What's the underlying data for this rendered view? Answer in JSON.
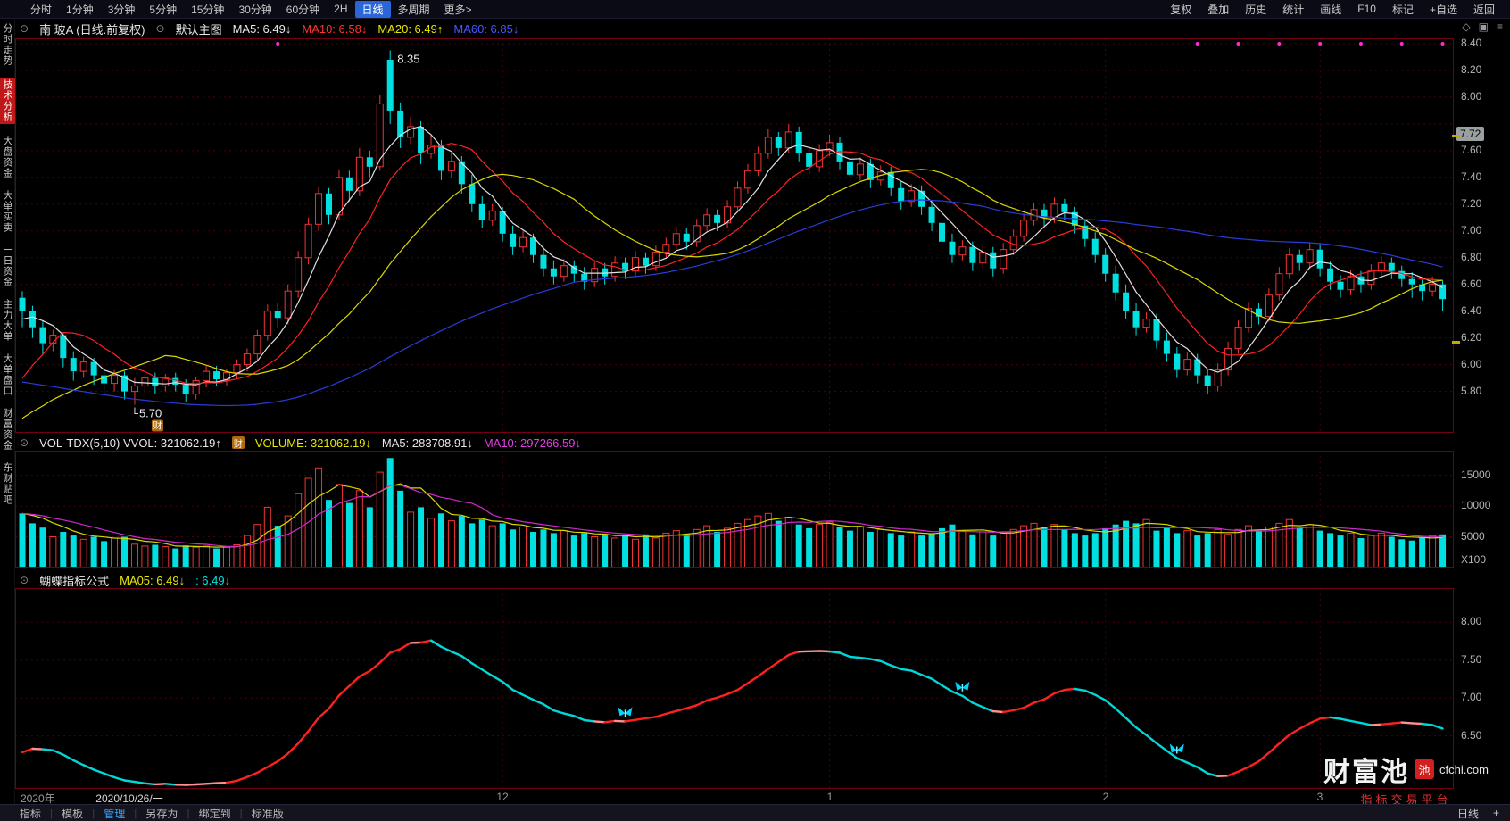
{
  "app": {
    "header_icons": [
      "◇",
      "▣",
      "≡"
    ]
  },
  "top_toolbar": {
    "periods": [
      "分时",
      "1分钟",
      "3分钟",
      "5分钟",
      "15分钟",
      "30分钟",
      "60分钟",
      "2H",
      "日线",
      "多周期",
      "更多>"
    ],
    "active_period": "日线",
    "right_buttons": [
      "复权",
      "叠加",
      "历史",
      "统计",
      "画线",
      "F10",
      "标记",
      "+自选",
      "返回"
    ]
  },
  "sidebar": {
    "items": [
      "分时走势",
      "技术分析",
      "大盘资金",
      "大单买卖",
      "一日资金",
      "主力大单",
      "大单盘口",
      "财富资金",
      "东财贴吧"
    ],
    "active": "技术分析"
  },
  "main_panel": {
    "collapse_icon": "⊙",
    "title": "南 玻A (日线.前复权)",
    "overlay_label": "默认主图",
    "ma_labels": [
      {
        "text": "MA5: 6.49↓",
        "color": "#e8e8e8"
      },
      {
        "text": "MA10: 6.58↓",
        "color": "#ff3434"
      },
      {
        "text": "MA20: 6.49↑",
        "color": "#e8e800"
      },
      {
        "text": "MA60: 6.85↓",
        "color": "#4858ff"
      }
    ],
    "peak_label": "8.35",
    "low_label": "5.70",
    "badge": "财",
    "price_marker": "7.72",
    "axis_labels": [
      "8.40",
      "8.20",
      "8.00",
      "7.60",
      "7.40",
      "7.20",
      "7.00",
      "6.80",
      "6.60",
      "6.40",
      "6.20",
      "6.00",
      "5.80"
    ]
  },
  "volume_panel": {
    "labels": [
      {
        "text": "VOL-TDX(5,10) VVOL: 321062.19↑",
        "color": "#e8e8e8"
      },
      {
        "text": "VOLUME: 321062.19↓",
        "color": "#e8e800"
      },
      {
        "text": "MA5: 283708.91↓",
        "color": "#e8e8e8"
      },
      {
        "text": "MA10: 297266.59↓",
        "color": "#e040e0"
      }
    ],
    "badge": "财",
    "axis_labels": [
      "15000",
      "10000",
      "5000"
    ],
    "unit_label": "X100"
  },
  "butterfly_panel": {
    "title": "蝴蝶指标公式",
    "labels": [
      {
        "text": "MA05: 6.49↓",
        "color": "#e8e800"
      },
      {
        "text": ": 6.49↓",
        "color": "#00e4e4"
      }
    ],
    "axis_labels": [
      "8.00",
      "7.50",
      "7.00",
      "6.50"
    ]
  },
  "date_axis": {
    "ticks": [
      {
        "label": "2020年",
        "i": 1
      },
      {
        "label": "2020/10/26/一",
        "i": 11,
        "bright": true
      },
      {
        "label": "12",
        "i": 47
      },
      {
        "label": "1",
        "i": 79
      },
      {
        "label": "2",
        "i": 106
      },
      {
        "label": "3",
        "i": 127
      }
    ]
  },
  "bottom_toolbar": {
    "items": [
      "指标",
      "模板",
      "管理",
      "另存为",
      "绑定到",
      "标准版"
    ],
    "active": "管理",
    "right_label": "日线",
    "plus": "+"
  },
  "watermark": {
    "brand": "财富池",
    "seal": "池",
    "domain": "cfchi.com",
    "tagline": "指标交易平台"
  },
  "chart_data": {
    "type": "candlestick",
    "symbol": "南玻A",
    "period": "日线",
    "price_axis_range": [
      5.49,
      8.44
    ],
    "volume_axis_max": 19000,
    "butterfly_axis_range": [
      5.8,
      8.45
    ],
    "high_annotation": {
      "value": 8.35,
      "index": 36
    },
    "low_annotation": {
      "value": 5.7,
      "index": 11
    },
    "current_price_marker": 7.72,
    "right_ticks": [
      7.72,
      6.18
    ],
    "vgrid_indices": [
      47,
      79,
      106,
      127
    ],
    "top_dot_indices": [
      25,
      115,
      119,
      123,
      127,
      131,
      135,
      139
    ],
    "butterfly_marker_indices": [
      59,
      92,
      113
    ],
    "ma_periods": [
      5,
      10,
      20,
      60
    ],
    "ma_colors": [
      "#e0e0e0",
      "#ff2020",
      "#d8d800",
      "#2a3cd8"
    ],
    "vol_ma_periods": [
      5,
      10
    ],
    "vol_ma_colors": [
      "#d8d800",
      "#cc2acc"
    ],
    "butterfly_period": 6,
    "butterfly_colors": {
      "up": "#ff2020",
      "down": "#00d8d8",
      "flat": "#ff9090"
    },
    "up_color": "#f03434",
    "down_color": "#00e0e0",
    "ma_seed": [
      7.0,
      6.95,
      6.9,
      6.85,
      6.8,
      6.75,
      6.7,
      6.65,
      6.6,
      6.55,
      6.5,
      6.45,
      6.4,
      6.35,
      6.3,
      6.25,
      6.2,
      6.15,
      6.1,
      6.05,
      6.0,
      5.95,
      5.9,
      5.85,
      5.8,
      5.75,
      5.7,
      5.65,
      5.6,
      5.55,
      5.5,
      5.45,
      5.4,
      5.38,
      5.36,
      5.34,
      5.32,
      5.3,
      5.3,
      5.3,
      5.3,
      5.3,
      5.3,
      5.28,
      5.3,
      5.28,
      5.3,
      5.32,
      5.3,
      5.32,
      5.3,
      5.32,
      5.34,
      5.32,
      5.3,
      6.0,
      6.2,
      6.3,
      6.4,
      6.4
    ],
    "candles": [
      [
        6.5,
        6.55,
        6.28,
        6.4
      ],
      [
        6.4,
        6.44,
        6.2,
        6.28
      ],
      [
        6.28,
        6.33,
        6.08,
        6.16
      ],
      [
        6.16,
        6.26,
        6.1,
        6.22
      ],
      [
        6.22,
        6.24,
        5.98,
        6.05
      ],
      [
        6.05,
        6.1,
        5.88,
        5.95
      ],
      [
        5.95,
        6.06,
        5.9,
        6.02
      ],
      [
        6.02,
        6.05,
        5.85,
        5.92
      ],
      [
        5.92,
        5.97,
        5.78,
        5.86
      ],
      [
        5.86,
        5.96,
        5.8,
        5.92
      ],
      [
        5.92,
        5.95,
        5.74,
        5.8
      ],
      [
        5.8,
        5.9,
        5.7,
        5.84
      ],
      [
        5.84,
        5.94,
        5.78,
        5.9
      ],
      [
        5.9,
        5.94,
        5.78,
        5.84
      ],
      [
        5.84,
        5.93,
        5.8,
        5.9
      ],
      [
        5.9,
        5.94,
        5.8,
        5.85
      ],
      [
        5.85,
        5.89,
        5.72,
        5.78
      ],
      [
        5.78,
        5.91,
        5.74,
        5.88
      ],
      [
        5.88,
        5.99,
        5.83,
        5.95
      ],
      [
        5.95,
        5.99,
        5.84,
        5.89
      ],
      [
        5.89,
        5.97,
        5.84,
        5.94
      ],
      [
        5.94,
        6.04,
        5.89,
        6.0
      ],
      [
        6.0,
        6.12,
        5.95,
        6.08
      ],
      [
        6.08,
        6.26,
        6.03,
        6.22
      ],
      [
        6.22,
        6.45,
        6.18,
        6.4
      ],
      [
        6.4,
        6.46,
        6.28,
        6.35
      ],
      [
        6.35,
        6.6,
        6.3,
        6.55
      ],
      [
        6.55,
        6.85,
        6.5,
        6.8
      ],
      [
        6.8,
        7.1,
        6.75,
        7.05
      ],
      [
        7.05,
        7.33,
        7.0,
        7.28
      ],
      [
        7.28,
        7.32,
        7.05,
        7.12
      ],
      [
        7.12,
        7.46,
        7.08,
        7.4
      ],
      [
        7.4,
        7.45,
        7.22,
        7.3
      ],
      [
        7.3,
        7.62,
        7.26,
        7.55
      ],
      [
        7.55,
        7.6,
        7.4,
        7.48
      ],
      [
        7.48,
        8.02,
        7.45,
        7.95
      ],
      [
        8.28,
        8.35,
        7.8,
        7.9
      ],
      [
        7.9,
        7.96,
        7.62,
        7.7
      ],
      [
        7.7,
        7.85,
        7.65,
        7.78
      ],
      [
        7.78,
        7.82,
        7.5,
        7.58
      ],
      [
        7.58,
        7.72,
        7.54,
        7.64
      ],
      [
        7.64,
        7.68,
        7.38,
        7.45
      ],
      [
        7.45,
        7.58,
        7.4,
        7.52
      ],
      [
        7.52,
        7.56,
        7.28,
        7.35
      ],
      [
        7.35,
        7.42,
        7.14,
        7.2
      ],
      [
        7.2,
        7.26,
        7.02,
        7.08
      ],
      [
        7.08,
        7.2,
        7.04,
        7.15
      ],
      [
        7.15,
        7.18,
        6.92,
        6.98
      ],
      [
        6.98,
        7.04,
        6.82,
        6.88
      ],
      [
        6.88,
        7.0,
        6.84,
        6.95
      ],
      [
        6.95,
        6.98,
        6.76,
        6.82
      ],
      [
        6.82,
        6.88,
        6.66,
        6.72
      ],
      [
        6.72,
        6.78,
        6.6,
        6.66
      ],
      [
        6.66,
        6.79,
        6.62,
        6.74
      ],
      [
        6.74,
        6.78,
        6.62,
        6.68
      ],
      [
        6.68,
        6.73,
        6.56,
        6.62
      ],
      [
        6.62,
        6.77,
        6.58,
        6.72
      ],
      [
        6.72,
        6.76,
        6.6,
        6.66
      ],
      [
        6.66,
        6.81,
        6.62,
        6.76
      ],
      [
        6.76,
        6.8,
        6.64,
        6.7
      ],
      [
        6.7,
        6.85,
        6.66,
        6.8
      ],
      [
        6.8,
        6.84,
        6.68,
        6.74
      ],
      [
        6.74,
        6.89,
        6.7,
        6.84
      ],
      [
        6.84,
        6.95,
        6.8,
        6.9
      ],
      [
        6.9,
        7.03,
        6.86,
        6.98
      ],
      [
        6.98,
        7.02,
        6.86,
        6.92
      ],
      [
        6.92,
        7.09,
        6.88,
        7.04
      ],
      [
        7.04,
        7.17,
        7.0,
        7.12
      ],
      [
        7.12,
        7.16,
        7.0,
        7.06
      ],
      [
        7.06,
        7.23,
        7.02,
        7.18
      ],
      [
        7.18,
        7.37,
        7.14,
        7.32
      ],
      [
        7.32,
        7.5,
        7.28,
        7.45
      ],
      [
        7.45,
        7.63,
        7.41,
        7.58
      ],
      [
        7.58,
        7.76,
        7.54,
        7.7
      ],
      [
        7.7,
        7.74,
        7.56,
        7.62
      ],
      [
        7.62,
        7.8,
        7.58,
        7.74
      ],
      [
        7.74,
        7.78,
        7.52,
        7.58
      ],
      [
        7.58,
        7.63,
        7.42,
        7.48
      ],
      [
        7.48,
        7.65,
        7.44,
        7.6
      ],
      [
        7.6,
        7.72,
        7.56,
        7.66
      ],
      [
        7.66,
        7.7,
        7.46,
        7.52
      ],
      [
        7.52,
        7.57,
        7.36,
        7.42
      ],
      [
        7.42,
        7.55,
        7.38,
        7.5
      ],
      [
        7.5,
        7.54,
        7.32,
        7.38
      ],
      [
        7.38,
        7.49,
        7.34,
        7.44
      ],
      [
        7.44,
        7.48,
        7.26,
        7.32
      ],
      [
        7.32,
        7.37,
        7.16,
        7.22
      ],
      [
        7.22,
        7.35,
        7.18,
        7.3
      ],
      [
        7.3,
        7.34,
        7.12,
        7.18
      ],
      [
        7.18,
        7.23,
        7.0,
        7.06
      ],
      [
        7.06,
        7.11,
        6.86,
        6.92
      ],
      [
        6.92,
        6.98,
        6.76,
        6.82
      ],
      [
        6.82,
        6.93,
        6.78,
        6.88
      ],
      [
        6.88,
        6.92,
        6.7,
        6.76
      ],
      [
        6.76,
        6.89,
        6.72,
        6.84
      ],
      [
        6.84,
        6.88,
        6.66,
        6.72
      ],
      [
        6.72,
        6.91,
        6.68,
        6.86
      ],
      [
        6.86,
        7.01,
        6.82,
        6.96
      ],
      [
        6.96,
        7.13,
        6.92,
        7.08
      ],
      [
        7.08,
        7.21,
        7.04,
        7.16
      ],
      [
        7.16,
        7.2,
        7.04,
        7.1
      ],
      [
        7.1,
        7.25,
        7.06,
        7.2
      ],
      [
        7.2,
        7.24,
        7.08,
        7.14
      ],
      [
        7.14,
        7.18,
        6.98,
        7.04
      ],
      [
        7.04,
        7.09,
        6.88,
        6.94
      ],
      [
        6.94,
        6.99,
        6.76,
        6.82
      ],
      [
        6.82,
        6.87,
        6.62,
        6.68
      ],
      [
        6.68,
        6.74,
        6.48,
        6.54
      ],
      [
        6.54,
        6.6,
        6.34,
        6.4
      ],
      [
        6.4,
        6.46,
        6.22,
        6.28
      ],
      [
        6.28,
        6.39,
        6.24,
        6.34
      ],
      [
        6.34,
        6.38,
        6.12,
        6.18
      ],
      [
        6.18,
        6.24,
        6.02,
        6.08
      ],
      [
        6.08,
        6.13,
        5.9,
        5.96
      ],
      [
        5.96,
        6.09,
        5.92,
        6.04
      ],
      [
        6.04,
        6.08,
        5.86,
        5.92
      ],
      [
        5.92,
        5.97,
        5.78,
        5.84
      ],
      [
        5.84,
        6.01,
        5.8,
        5.96
      ],
      [
        5.96,
        6.17,
        5.92,
        6.12
      ],
      [
        6.12,
        6.33,
        6.08,
        6.28
      ],
      [
        6.28,
        6.47,
        6.24,
        6.42
      ],
      [
        6.42,
        6.46,
        6.3,
        6.36
      ],
      [
        6.36,
        6.57,
        6.32,
        6.52
      ],
      [
        6.52,
        6.73,
        6.48,
        6.68
      ],
      [
        6.68,
        6.87,
        6.64,
        6.82
      ],
      [
        6.82,
        6.86,
        6.7,
        6.76
      ],
      [
        6.76,
        6.91,
        6.72,
        6.86
      ],
      [
        6.86,
        6.9,
        6.66,
        6.72
      ],
      [
        6.72,
        6.77,
        6.56,
        6.62
      ],
      [
        6.62,
        6.67,
        6.5,
        6.56
      ],
      [
        6.56,
        6.71,
        6.52,
        6.66
      ],
      [
        6.66,
        6.7,
        6.54,
        6.6
      ],
      [
        6.6,
        6.75,
        6.56,
        6.7
      ],
      [
        6.7,
        6.81,
        6.66,
        6.76
      ],
      [
        6.76,
        6.8,
        6.64,
        6.7
      ],
      [
        6.7,
        6.74,
        6.58,
        6.64
      ],
      [
        6.64,
        6.69,
        6.5,
        6.6
      ],
      [
        6.6,
        6.64,
        6.48,
        6.55
      ],
      [
        6.55,
        6.66,
        6.51,
        6.6
      ],
      [
        6.6,
        6.63,
        6.4,
        6.49
      ]
    ],
    "volumes": [
      8800,
      7200,
      6500,
      5000,
      5800,
      5200,
      4600,
      5000,
      4300,
      4800,
      5000,
      3800,
      3500,
      3700,
      3400,
      3100,
      3600,
      3300,
      3500,
      3100,
      3300,
      3700,
      5200,
      7000,
      9800,
      6800,
      8400,
      12000,
      14500,
      16200,
      11000,
      13500,
      10500,
      12500,
      9800,
      15500,
      17800,
      12500,
      9000,
      9800,
      8000,
      8800,
      7600,
      8400,
      7200,
      7800,
      6800,
      7200,
      6200,
      6600,
      5800,
      6200,
      5600,
      6000,
      5200,
      5600,
      5000,
      5400,
      4800,
      5200,
      4600,
      5400,
      4800,
      5600,
      6000,
      5400,
      6200,
      6800,
      5800,
      6400,
      7200,
      7800,
      8400,
      8800,
      7600,
      8200,
      7000,
      6400,
      7000,
      7400,
      6600,
      6000,
      6600,
      5800,
      6200,
      5600,
      5200,
      5800,
      5200,
      5600,
      6400,
      7000,
      6000,
      5400,
      5800,
      5200,
      5600,
      6200,
      6800,
      7200,
      6600,
      7000,
      6200,
      5600,
      5200,
      5600,
      6400,
      7000,
      7600,
      7200,
      7800,
      6000,
      6400,
      5600,
      6000,
      5200,
      5600,
      6200,
      5400,
      6200,
      6800,
      6000,
      6600,
      7200,
      7800,
      6400,
      7000,
      6000,
      5600,
      5200,
      5600,
      4800,
      5200,
      5600,
      5000,
      4600,
      4400,
      4800,
      5200,
      5400
    ]
  }
}
